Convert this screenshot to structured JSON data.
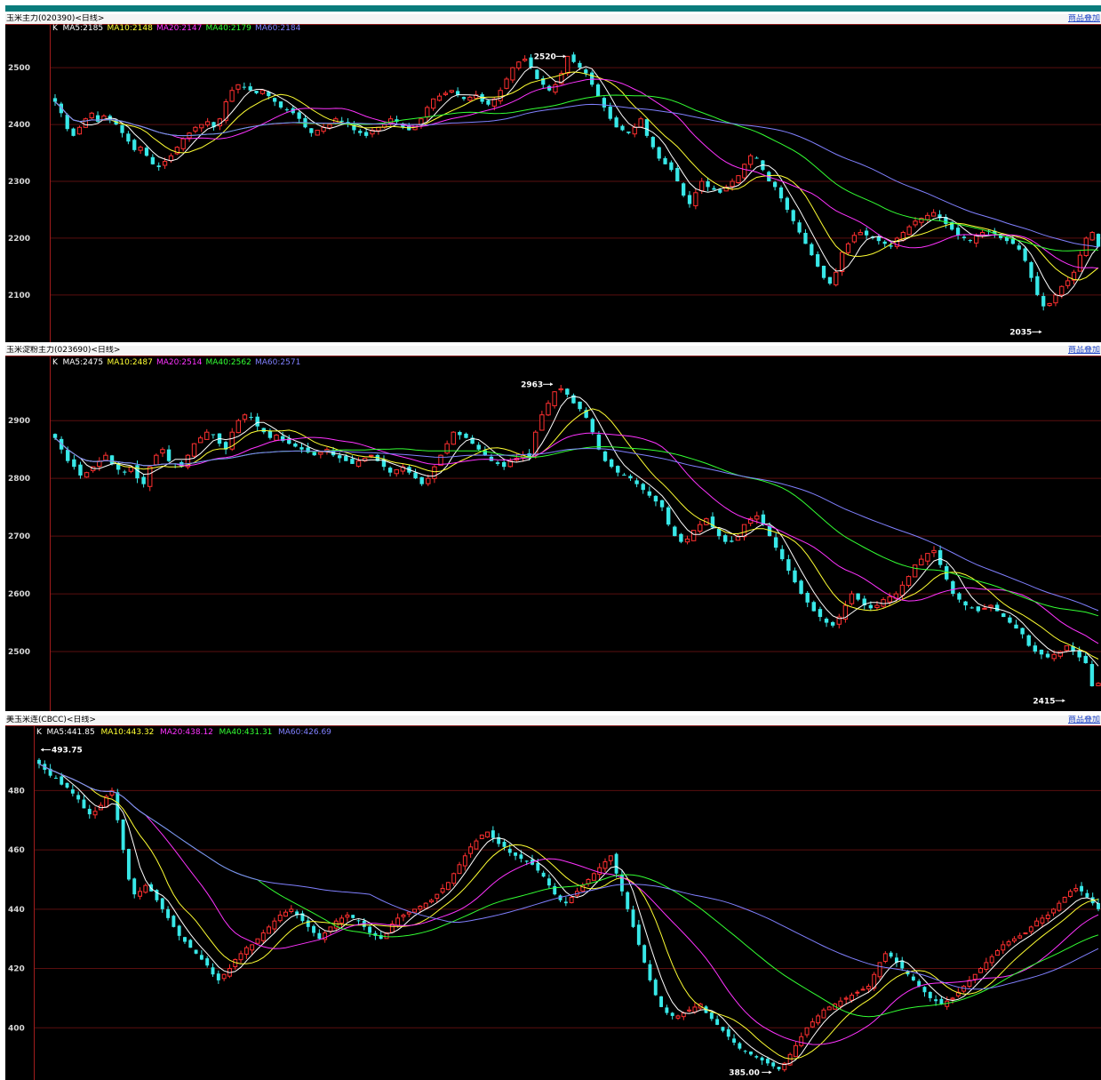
{
  "chart_data": [
    {
      "type": "candlestick",
      "title": "玉米主力(020390)<日线>",
      "overlay_label": "商品叠加",
      "legend": [
        {
          "label": "K",
          "color": "#ffffff"
        },
        {
          "label": "MA5:2185",
          "color": "#ffffff"
        },
        {
          "label": "MA10:2148",
          "color": "#ffff33"
        },
        {
          "label": "MA20:2147",
          "color": "#ff33ff"
        },
        {
          "label": "MA40:2179",
          "color": "#33ff33"
        },
        {
          "label": "MA60:2184",
          "color": "#8080ff"
        }
      ],
      "ylim": [
        2020,
        2555
      ],
      "yticks": [
        2100,
        2200,
        2300,
        2400,
        2500
      ],
      "grid": true,
      "close": [
        2440,
        2420,
        2392,
        2380,
        2395,
        2410,
        2420,
        2405,
        2415,
        2408,
        2400,
        2385,
        2370,
        2355,
        2360,
        2345,
        2330,
        2325,
        2335,
        2345,
        2360,
        2375,
        2385,
        2395,
        2400,
        2405,
        2395,
        2410,
        2440,
        2460,
        2470,
        2465,
        2460,
        2455,
        2460,
        2450,
        2440,
        2430,
        2425,
        2420,
        2410,
        2395,
        2385,
        2390,
        2395,
        2400,
        2410,
        2405,
        2400,
        2390,
        2385,
        2380,
        2390,
        2395,
        2400,
        2410,
        2405,
        2395,
        2390,
        2400,
        2410,
        2430,
        2445,
        2450,
        2455,
        2460,
        2452,
        2445,
        2448,
        2452,
        2440,
        2435,
        2445,
        2460,
        2480,
        2500,
        2510,
        2515,
        2500,
        2480,
        2470,
        2460,
        2470,
        2490,
        2520,
        2510,
        2500,
        2490,
        2470,
        2450,
        2430,
        2410,
        2395,
        2390,
        2385,
        2395,
        2410,
        2380,
        2360,
        2340,
        2330,
        2320,
        2300,
        2275,
        2260,
        2280,
        2300,
        2290,
        2285,
        2280,
        2290,
        2300,
        2310,
        2330,
        2345,
        2340,
        2320,
        2300,
        2290,
        2270,
        2250,
        2230,
        2210,
        2190,
        2170,
        2150,
        2130,
        2120,
        2140,
        2175,
        2190,
        2205,
        2210,
        2205,
        2200,
        2195,
        2190,
        2185,
        2200,
        2210,
        2220,
        2230,
        2235,
        2240,
        2245,
        2235,
        2225,
        2215,
        2205,
        2200,
        2195,
        2205,
        2210,
        2212,
        2208,
        2200,
        2195,
        2190,
        2180,
        2160,
        2130,
        2100,
        2080,
        2085,
        2100,
        2115,
        2125,
        2140,
        2170,
        2200,
        2210,
        2185
      ],
      "ma5_end": 2185,
      "ma10_end": 2148,
      "ma20_end": 2147,
      "ma40_end": 2179,
      "ma60_end": 2184,
      "annotations": [
        {
          "text": "2520",
          "arrow": "right",
          "bar": 84,
          "value": 2520
        },
        {
          "text": "2035",
          "arrow": "right",
          "bar": 162,
          "value": 2035
        }
      ]
    },
    {
      "type": "candlestick",
      "title": "玉米淀粉主力(023690)<日线>",
      "overlay_label": "商品叠加",
      "legend": [
        {
          "label": "K",
          "color": "#ffffff"
        },
        {
          "label": "MA5:2475",
          "color": "#ffffff"
        },
        {
          "label": "MA10:2487",
          "color": "#ffff33"
        },
        {
          "label": "MA20:2514",
          "color": "#ff33ff"
        },
        {
          "label": "MA40:2562",
          "color": "#33ff33"
        },
        {
          "label": "MA60:2571",
          "color": "#8080ff"
        }
      ],
      "ylim": [
        2400,
        2985
      ],
      "yticks": [
        2500,
        2600,
        2700,
        2800,
        2900
      ],
      "grid": true,
      "close": [
        2870,
        2850,
        2830,
        2820,
        2805,
        2810,
        2820,
        2830,
        2840,
        2825,
        2815,
        2810,
        2820,
        2800,
        2790,
        2820,
        2840,
        2850,
        2830,
        2825,
        2820,
        2840,
        2860,
        2870,
        2880,
        2875,
        2860,
        2850,
        2880,
        2900,
        2910,
        2905,
        2890,
        2880,
        2870,
        2875,
        2865,
        2860,
        2855,
        2850,
        2845,
        2840,
        2845,
        2850,
        2840,
        2835,
        2830,
        2825,
        2830,
        2835,
        2840,
        2830,
        2820,
        2810,
        2815,
        2820,
        2810,
        2800,
        2790,
        2800,
        2820,
        2840,
        2860,
        2880,
        2875,
        2870,
        2860,
        2850,
        2840,
        2830,
        2825,
        2820,
        2830,
        2835,
        2840,
        2838,
        2880,
        2910,
        2930,
        2950,
        2955,
        2945,
        2930,
        2920,
        2905,
        2880,
        2850,
        2830,
        2820,
        2810,
        2805,
        2800,
        2790,
        2780,
        2770,
        2760,
        2750,
        2720,
        2700,
        2690,
        2695,
        2710,
        2720,
        2730,
        2715,
        2700,
        2690,
        2690,
        2700,
        2720,
        2730,
        2735,
        2720,
        2700,
        2680,
        2660,
        2640,
        2620,
        2600,
        2585,
        2570,
        2560,
        2550,
        2545,
        2560,
        2580,
        2600,
        2590,
        2580,
        2575,
        2580,
        2590,
        2595,
        2600,
        2615,
        2630,
        2650,
        2660,
        2670,
        2675,
        2650,
        2625,
        2600,
        2590,
        2580,
        2575,
        2570,
        2575,
        2580,
        2570,
        2560,
        2550,
        2540,
        2530,
        2510,
        2500,
        2495,
        2490,
        2495,
        2500,
        2510,
        2500,
        2490,
        2480,
        2440,
        2445
      ],
      "ma5_end": 2475,
      "ma10_end": 2487,
      "ma20_end": 2514,
      "ma40_end": 2562,
      "ma60_end": 2571,
      "annotations": [
        {
          "text": "2963",
          "arrow": "right",
          "bar": 79,
          "value": 2963
        },
        {
          "text": "2415",
          "arrow": "right",
          "bar": 160,
          "value": 2415
        }
      ]
    },
    {
      "type": "candlestick",
      "title": "美玉米连(CBCC)<日线>",
      "overlay_label": "商品叠加",
      "legend": [
        {
          "label": "K",
          "color": "#ffffff"
        },
        {
          "label": "MA5:441.85",
          "color": "#ffffff"
        },
        {
          "label": "MA10:443.32",
          "color": "#ffff33"
        },
        {
          "label": "MA20:438.12",
          "color": "#ff33ff"
        },
        {
          "label": "MA40:431.31",
          "color": "#33ff33"
        },
        {
          "label": "MA60:426.69",
          "color": "#8080ff"
        }
      ],
      "ylim": [
        383,
        496
      ],
      "yticks": [
        400,
        420,
        440,
        460,
        480
      ],
      "grid": true,
      "close": [
        489,
        487,
        485,
        484,
        482,
        481,
        479,
        477,
        474,
        472,
        473,
        475,
        478,
        480,
        470,
        460,
        450,
        445,
        446,
        448,
        446,
        443,
        440,
        437,
        434,
        431,
        429,
        427,
        425,
        423,
        421,
        418,
        416,
        418,
        420,
        423,
        425,
        427,
        428,
        430,
        432,
        434,
        436,
        438,
        439,
        440,
        438,
        436,
        434,
        432,
        430,
        432,
        434,
        436,
        437,
        438,
        437,
        436,
        434,
        432,
        431,
        430,
        432,
        435,
        437,
        438,
        439,
        440,
        441,
        442,
        443,
        445,
        447,
        449,
        452,
        455,
        458,
        461,
        463,
        465,
        466,
        464,
        462,
        461,
        459,
        458,
        457,
        456,
        455,
        453,
        451,
        448,
        445,
        443,
        442,
        444,
        446,
        448,
        450,
        452,
        454,
        456,
        458,
        452,
        446,
        440,
        434,
        428,
        422,
        416,
        411,
        407,
        405,
        404,
        404,
        405,
        406,
        407,
        408,
        405,
        403,
        401,
        399,
        397,
        395,
        393,
        392,
        391,
        390,
        389,
        388,
        387,
        386,
        388,
        391,
        394,
        397,
        400,
        402,
        404,
        406,
        407,
        408,
        409,
        410,
        411,
        412,
        413,
        414,
        418,
        422,
        425,
        424,
        422,
        420,
        418,
        416,
        414,
        412,
        410,
        409,
        408,
        409,
        410,
        412,
        414,
        416,
        418,
        420,
        422,
        424,
        426,
        428,
        429,
        430,
        431,
        432,
        434,
        436,
        437,
        438,
        440,
        442,
        444,
        446,
        447,
        446,
        444,
        442,
        440
      ],
      "ma5_end": 441.85,
      "ma10_end": 443.32,
      "ma20_end": 438.12,
      "ma40_end": 431.31,
      "ma60_end": 426.69,
      "annotations": [
        {
          "text": "493.75",
          "arrow": "left",
          "bar": 0,
          "value": 493.75
        },
        {
          "text": "385.00",
          "arrow": "right",
          "bar": 131,
          "value": 385.0
        }
      ]
    }
  ]
}
